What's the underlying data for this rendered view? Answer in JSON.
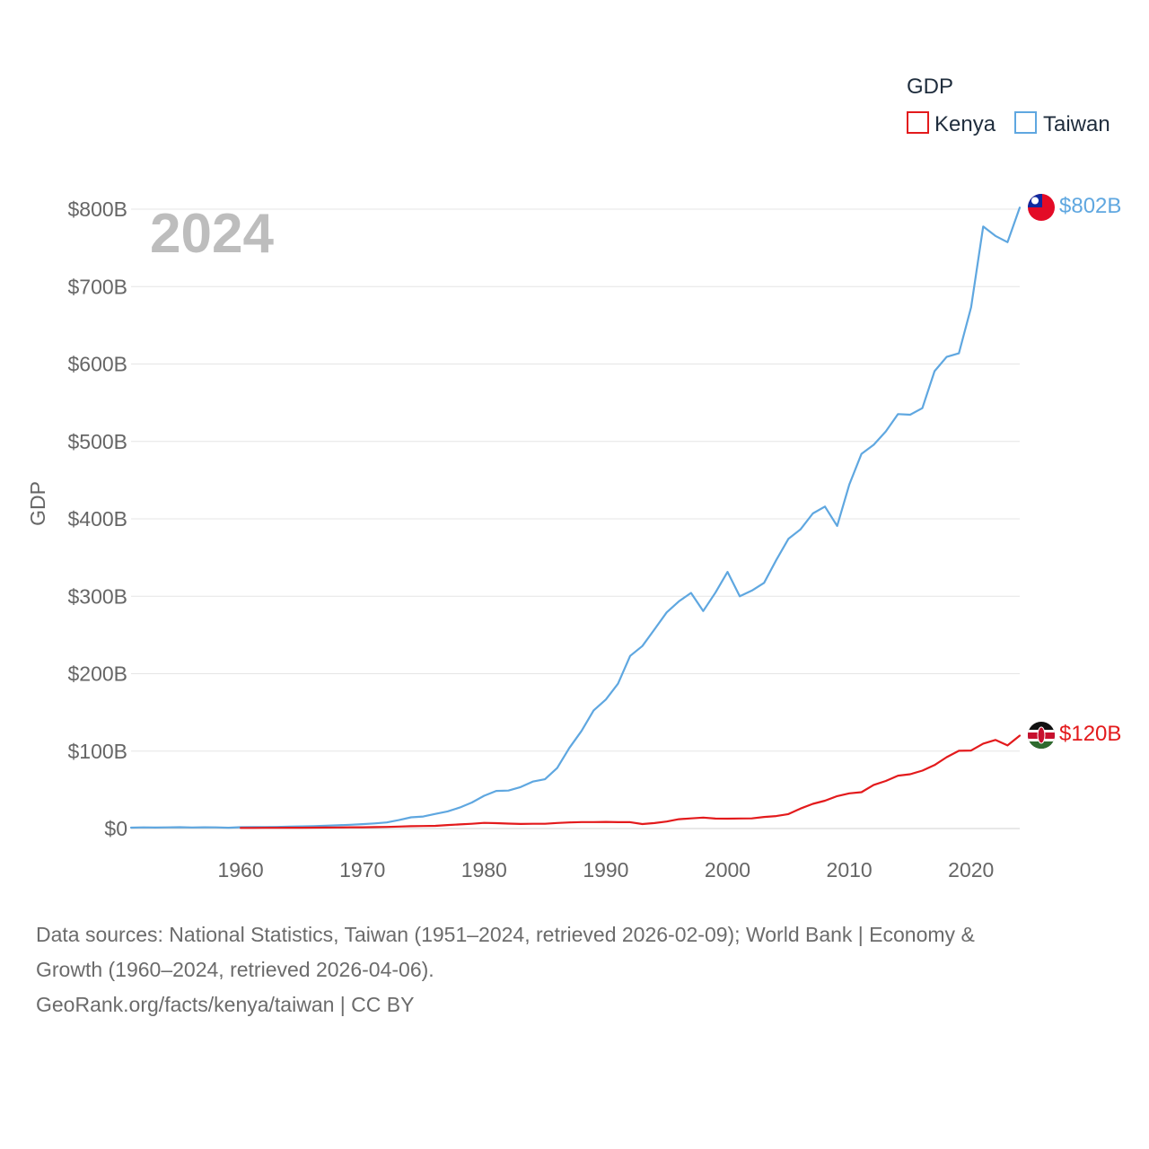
{
  "chart_data": {
    "type": "line",
    "title": "",
    "year_label": "2024",
    "ylabel": "GDP",
    "xlabel": "",
    "xlim": [
      1951,
      2024
    ],
    "ylim": [
      0,
      800
    ],
    "y_unit": "billion USD",
    "x_ticks": [
      1960,
      1970,
      1980,
      1990,
      2000,
      2010,
      2020
    ],
    "y_ticks": [
      {
        "value": 0,
        "label": "$0"
      },
      {
        "value": 100,
        "label": "$100B"
      },
      {
        "value": 200,
        "label": "$200B"
      },
      {
        "value": 300,
        "label": "$300B"
      },
      {
        "value": 400,
        "label": "$400B"
      },
      {
        "value": 500,
        "label": "$500B"
      },
      {
        "value": 600,
        "label": "$600B"
      },
      {
        "value": 700,
        "label": "$700B"
      },
      {
        "value": 800,
        "label": "$800B"
      }
    ],
    "grid": true,
    "legend": {
      "title": "GDP",
      "position": "top-right"
    },
    "series": [
      {
        "name": "Kenya",
        "color": "#e31a1c",
        "end_label": "$120B",
        "flag": "kenya-flag",
        "x": [
          1960,
          1961,
          1962,
          1963,
          1964,
          1965,
          1966,
          1967,
          1968,
          1969,
          1970,
          1971,
          1972,
          1973,
          1974,
          1975,
          1976,
          1977,
          1978,
          1979,
          1980,
          1981,
          1982,
          1983,
          1984,
          1985,
          1986,
          1987,
          1988,
          1989,
          1990,
          1991,
          1992,
          1993,
          1994,
          1995,
          1996,
          1997,
          1998,
          1999,
          2000,
          2001,
          2002,
          2003,
          2004,
          2005,
          2006,
          2007,
          2008,
          2009,
          2010,
          2011,
          2012,
          2013,
          2014,
          2015,
          2016,
          2017,
          2018,
          2019,
          2020,
          2021,
          2022,
          2023,
          2024
        ],
        "values": [
          0.8,
          0.8,
          0.9,
          0.9,
          1.0,
          1.0,
          1.2,
          1.3,
          1.4,
          1.6,
          1.6,
          1.8,
          2.1,
          2.5,
          3.0,
          3.3,
          3.5,
          4.5,
          5.3,
          6.2,
          7.3,
          7.0,
          6.4,
          5.9,
          6.2,
          6.1,
          7.2,
          7.9,
          8.4,
          8.3,
          8.6,
          8.2,
          8.2,
          5.8,
          7.1,
          9.0,
          12.0,
          13.1,
          14.1,
          12.9,
          12.7,
          13.0,
          13.1,
          14.9,
          16.1,
          18.7,
          25.8,
          31.9,
          35.9,
          41.9,
          45.4,
          46.9,
          56.4,
          61.4,
          68.3,
          70.1,
          74.8,
          82.0,
          92.2,
          100.4,
          100.7,
          109.7,
          114.4,
          107.4,
          120.0
        ]
      },
      {
        "name": "Taiwan",
        "color": "#5fa7e0",
        "end_label": "$802B",
        "flag": "taiwan-flag",
        "x": [
          1951,
          1952,
          1953,
          1954,
          1955,
          1956,
          1957,
          1958,
          1959,
          1960,
          1961,
          1962,
          1963,
          1964,
          1965,
          1966,
          1967,
          1968,
          1969,
          1970,
          1971,
          1972,
          1973,
          1974,
          1975,
          1976,
          1977,
          1978,
          1979,
          1980,
          1981,
          1982,
          1983,
          1984,
          1985,
          1986,
          1987,
          1988,
          1989,
          1990,
          1991,
          1992,
          1993,
          1994,
          1995,
          1996,
          1997,
          1998,
          1999,
          2000,
          2001,
          2002,
          2003,
          2004,
          2005,
          2006,
          2007,
          2008,
          2009,
          2010,
          2011,
          2012,
          2013,
          2014,
          2015,
          2016,
          2017,
          2018,
          2019,
          2020,
          2021,
          2022,
          2023,
          2024
        ],
        "values": [
          1.2,
          1.5,
          1.3,
          1.5,
          1.7,
          1.4,
          1.6,
          1.5,
          1.1,
          1.7,
          1.8,
          1.9,
          2.1,
          2.4,
          2.8,
          3.1,
          3.6,
          4.2,
          4.9,
          5.7,
          6.6,
          7.9,
          10.9,
          14.5,
          15.5,
          18.9,
          22.2,
          27.1,
          33.6,
          42.3,
          48.6,
          49.0,
          53.6,
          60.6,
          63.6,
          78.2,
          104.0,
          126.0,
          152.6,
          166.6,
          187.1,
          222.9,
          235.7,
          257.4,
          279.2,
          293.5,
          304.4,
          280.9,
          304.7,
          331.5,
          299.9,
          307.4,
          317.3,
          346.9,
          374.1,
          386.5,
          406.9,
          415.9,
          390.8,
          444.2,
          483.9,
          495.6,
          512.9,
          535.3,
          534.5,
          543.0,
          590.7,
          609.2,
          613.8,
          673.2,
          777.6,
          765.4,
          757.3,
          802.0
        ]
      }
    ]
  },
  "footer": {
    "sources_line1": "Data sources: National Statistics, Taiwan (1951–2024, retrieved 2026-02-09); World Bank | Economy &",
    "sources_line2": "Growth (1960–2024, retrieved 2026-04-06).",
    "credit": "GeoRank.org/facts/kenya/taiwan | CC BY"
  }
}
